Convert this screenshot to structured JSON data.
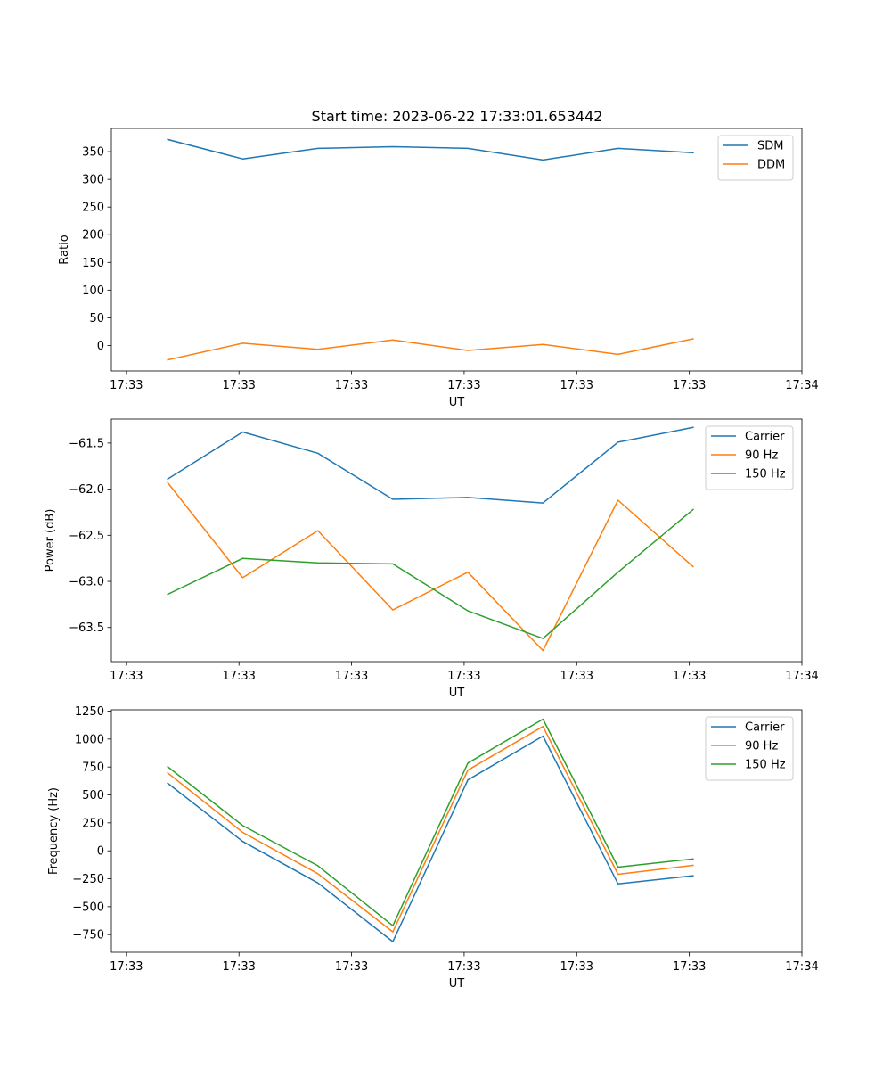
{
  "figure": {
    "title": "Start time: 2023-06-22 17:33:01.653442"
  },
  "chart_data": [
    {
      "type": "line",
      "name": "ratio-chart",
      "title": "Start time: 2023-06-22 17:33:01.653442",
      "xlabel": "UT",
      "ylabel": "Ratio",
      "xlim": [
        -0.4,
        8.8
      ],
      "ylim": [
        -46,
        392
      ],
      "x": [
        0.35,
        1.35,
        2.35,
        3.35,
        4.35,
        5.35,
        6.35,
        7.35
      ],
      "xticks": [
        {
          "v": -0.2,
          "label": "17:33"
        },
        {
          "v": 1.3,
          "label": "17:33"
        },
        {
          "v": 2.8,
          "label": "17:33"
        },
        {
          "v": 4.3,
          "label": "17:33"
        },
        {
          "v": 5.8,
          "label": "17:33"
        },
        {
          "v": 7.3,
          "label": "17:33"
        },
        {
          "v": 8.8,
          "label": "17:34"
        }
      ],
      "yticks": [
        {
          "v": 0,
          "label": "0"
        },
        {
          "v": 50,
          "label": "50"
        },
        {
          "v": 100,
          "label": "100"
        },
        {
          "v": 150,
          "label": "150"
        },
        {
          "v": 200,
          "label": "200"
        },
        {
          "v": 250,
          "label": "250"
        },
        {
          "v": 300,
          "label": "300"
        },
        {
          "v": 350,
          "label": "350"
        }
      ],
      "series": [
        {
          "name": "SDM",
          "color": "#1f77b4",
          "values": [
            372,
            337,
            356,
            359,
            356,
            335,
            356,
            348
          ]
        },
        {
          "name": "DDM",
          "color": "#ff7f0e",
          "values": [
            -26,
            4,
            -7,
            10,
            -9,
            2,
            -16,
            12
          ]
        }
      ],
      "legend": "top-right",
      "grid": false
    },
    {
      "type": "line",
      "name": "power-chart",
      "xlabel": "UT",
      "ylabel": "Power (dB)",
      "xlim": [
        -0.4,
        8.8
      ],
      "ylim": [
        -63.87,
        -61.24
      ],
      "x": [
        0.35,
        1.35,
        2.35,
        3.35,
        4.35,
        5.35,
        6.35,
        7.35
      ],
      "xticks": [
        {
          "v": -0.2,
          "label": "17:33"
        },
        {
          "v": 1.3,
          "label": "17:33"
        },
        {
          "v": 2.8,
          "label": "17:33"
        },
        {
          "v": 4.3,
          "label": "17:33"
        },
        {
          "v": 5.8,
          "label": "17:33"
        },
        {
          "v": 7.3,
          "label": "17:33"
        },
        {
          "v": 8.8,
          "label": "17:34"
        }
      ],
      "yticks": [
        {
          "v": -63.5,
          "label": "−63.5"
        },
        {
          "v": -63.0,
          "label": "−63.0"
        },
        {
          "v": -62.5,
          "label": "−62.5"
        },
        {
          "v": -62.0,
          "label": "−62.0"
        },
        {
          "v": -61.5,
          "label": "−61.5"
        }
      ],
      "series": [
        {
          "name": "Carrier",
          "color": "#1f77b4",
          "values": [
            -61.89,
            -61.38,
            -61.61,
            -62.11,
            -62.09,
            -62.15,
            -61.49,
            -61.33
          ]
        },
        {
          "name": "90 Hz",
          "color": "#ff7f0e",
          "values": [
            -61.93,
            -62.96,
            -62.45,
            -63.31,
            -62.9,
            -63.75,
            -62.12,
            -62.84
          ]
        },
        {
          "name": "150 Hz",
          "color": "#2ca02c",
          "values": [
            -63.14,
            -62.75,
            -62.8,
            -62.81,
            -63.32,
            -63.62,
            -62.9,
            -62.22
          ]
        }
      ],
      "legend": "top-right",
      "grid": false
    },
    {
      "type": "line",
      "name": "frequency-chart",
      "xlabel": "UT",
      "ylabel": "Frequency (Hz)",
      "xlim": [
        -0.4,
        8.8
      ],
      "ylim": [
        -908,
        1262
      ],
      "x": [
        0.35,
        1.35,
        2.35,
        3.35,
        4.35,
        5.35,
        6.35,
        7.35
      ],
      "xticks": [
        {
          "v": -0.2,
          "label": "17:33"
        },
        {
          "v": 1.3,
          "label": "17:33"
        },
        {
          "v": 2.8,
          "label": "17:33"
        },
        {
          "v": 4.3,
          "label": "17:33"
        },
        {
          "v": 5.8,
          "label": "17:33"
        },
        {
          "v": 7.3,
          "label": "17:33"
        },
        {
          "v": 8.8,
          "label": "17:34"
        }
      ],
      "yticks": [
        {
          "v": -750,
          "label": "−750"
        },
        {
          "v": -500,
          "label": "−500"
        },
        {
          "v": -250,
          "label": "−250"
        },
        {
          "v": 0,
          "label": "0"
        },
        {
          "v": 250,
          "label": "250"
        },
        {
          "v": 500,
          "label": "500"
        },
        {
          "v": 750,
          "label": "750"
        },
        {
          "v": 1000,
          "label": "1000"
        },
        {
          "v": 1250,
          "label": "1250"
        }
      ],
      "series": [
        {
          "name": "Carrier",
          "color": "#1f77b4",
          "values": [
            605,
            84,
            -287,
            -813,
            634,
            1027,
            -295,
            -223
          ]
        },
        {
          "name": "90 Hz",
          "color": "#ff7f0e",
          "values": [
            697,
            165,
            -204,
            -725,
            722,
            1113,
            -210,
            -130
          ]
        },
        {
          "name": "150 Hz",
          "color": "#2ca02c",
          "values": [
            752,
            226,
            -133,
            -670,
            785,
            1178,
            -146,
            -73
          ]
        }
      ],
      "legend": "top-right",
      "grid": false
    }
  ]
}
